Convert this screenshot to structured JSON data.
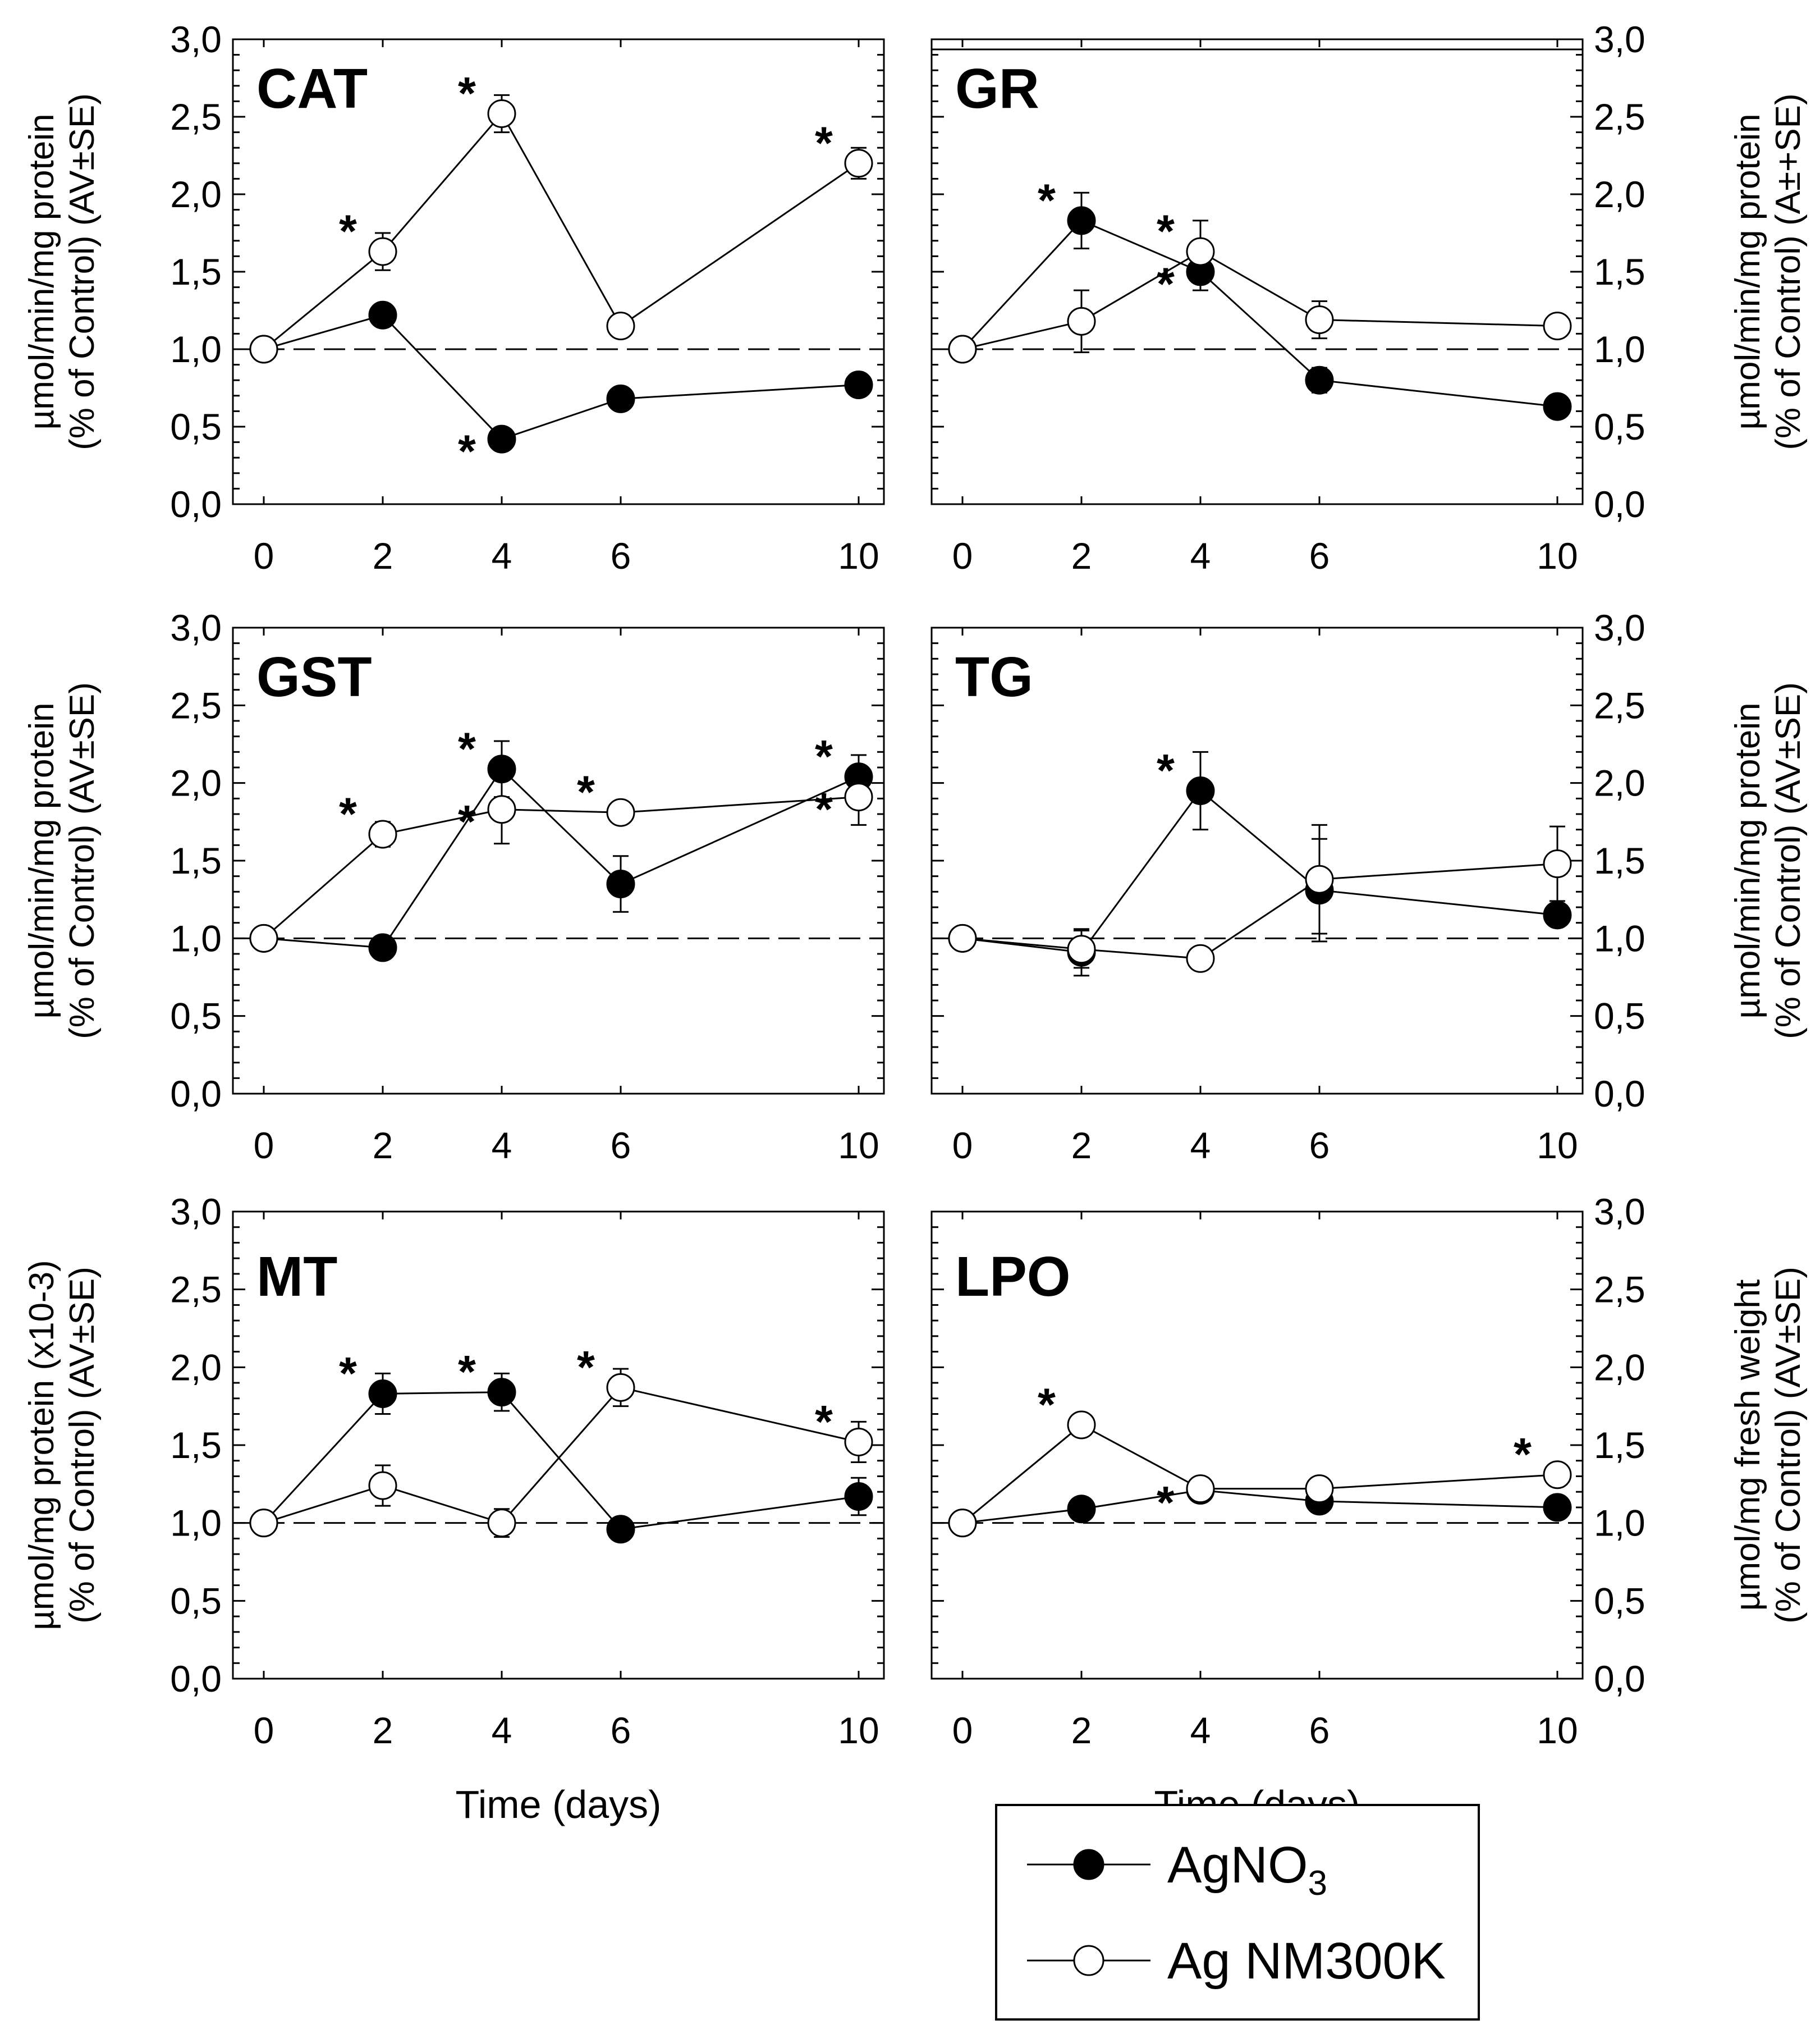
{
  "legend": {
    "agno3": {
      "prefix": "AgNO",
      "sub": "3"
    },
    "nm": "Ag NM300K"
  },
  "chart_data": [
    {
      "type": "line",
      "title": "CAT",
      "ylabel": [
        "µmol/min/mg protein",
        "(% of Control) (AV±SE)"
      ],
      "xlabel": "",
      "x": [
        0,
        2,
        4,
        6,
        10
      ],
      "xticks": [
        "0",
        "2",
        "4",
        "6",
        "10"
      ],
      "ylim": [
        0,
        3
      ],
      "yticks": [
        "0,0",
        "0,5",
        "1,0",
        "1,5",
        "2,0",
        "2,5",
        "3,0"
      ],
      "reference_line": 1.0,
      "series": [
        {
          "name": "AgNO3",
          "values": [
            1.0,
            1.22,
            0.42,
            0.68,
            0.77
          ],
          "errors": [
            0,
            0.03,
            0.04,
            0.05,
            0.04
          ],
          "stars": [
            null,
            null,
            "left-below",
            null,
            null
          ]
        },
        {
          "name": "Ag NM300K",
          "values": [
            1.0,
            1.63,
            2.52,
            1.15,
            2.2
          ],
          "errors": [
            0,
            0.12,
            0.12,
            0.05,
            0.1
          ],
          "stars": [
            null,
            "left",
            "left",
            null,
            "left"
          ]
        }
      ]
    },
    {
      "type": "line",
      "title": "GR",
      "ylabel": [
        "µmol/min/mg protein",
        "(% of Control) (A±+SE)"
      ],
      "xlabel": "",
      "x": [
        0,
        2,
        4,
        6,
        10
      ],
      "xticks": [
        "0",
        "2",
        "4",
        "6",
        "10"
      ],
      "ylim": [
        0,
        3
      ],
      "yticks": [
        "0,0",
        "0,5",
        "1,0",
        "1,5",
        "2,0",
        "2,5",
        "3,0"
      ],
      "reference_line": 1.0,
      "series": [
        {
          "name": "AgNO3",
          "values": [
            1.0,
            1.83,
            1.5,
            0.8,
            0.63
          ],
          "errors": [
            0,
            0.18,
            0.12,
            0.08,
            0.04
          ],
          "stars": [
            null,
            "left",
            "left-below",
            null,
            null
          ]
        },
        {
          "name": "Ag NM300K",
          "values": [
            1.0,
            1.18,
            1.63,
            1.19,
            1.15
          ],
          "errors": [
            0,
            0.2,
            0.2,
            0.12,
            0.07
          ],
          "stars": [
            null,
            null,
            "left",
            null,
            null
          ]
        }
      ]
    },
    {
      "type": "line",
      "title": "GST",
      "ylabel": [
        "µmol/min/mg protein",
        "(% of Control) (AV±SE)"
      ],
      "xlabel": "",
      "x": [
        0,
        2,
        4,
        6,
        10
      ],
      "xticks": [
        "0",
        "2",
        "4",
        "6",
        "10"
      ],
      "ylim": [
        0,
        3
      ],
      "yticks": [
        "0,0",
        "0,5",
        "1,0",
        "1,5",
        "2,0",
        "2,5",
        "3,0"
      ],
      "reference_line": 1.0,
      "series": [
        {
          "name": "AgNO3",
          "values": [
            1.0,
            0.94,
            2.09,
            1.35,
            2.04
          ],
          "errors": [
            0,
            0.06,
            0.18,
            0.18,
            0.14
          ],
          "stars": [
            null,
            null,
            "left",
            null,
            "left"
          ]
        },
        {
          "name": "Ag NM300K",
          "values": [
            1.0,
            1.67,
            1.83,
            1.81,
            1.91
          ],
          "errors": [
            0,
            0.08,
            0.22,
            0.07,
            0.18
          ],
          "stars": [
            null,
            "left",
            "left-below",
            "left",
            "left-below"
          ]
        }
      ]
    },
    {
      "type": "line",
      "title": "TG",
      "ylabel": [
        "µmol/min/mg protein",
        "(% of Control) (AV±SE)"
      ],
      "xlabel": "",
      "x": [
        0,
        2,
        4,
        6,
        10
      ],
      "xticks": [
        "0",
        "2",
        "4",
        "6",
        "10"
      ],
      "ylim": [
        0,
        3
      ],
      "yticks": [
        "0,0",
        "0,5",
        "1,0",
        "1,5",
        "2,0",
        "2,5",
        "3,0"
      ],
      "reference_line": 1.0,
      "series": [
        {
          "name": "AgNO3",
          "values": [
            1.0,
            0.91,
            1.95,
            1.31,
            1.15
          ],
          "errors": [
            0,
            0.15,
            0.25,
            0.33,
            0.06
          ],
          "stars": [
            null,
            null,
            "left",
            null,
            null
          ]
        },
        {
          "name": "Ag NM300K",
          "values": [
            1.0,
            0.93,
            0.87,
            1.38,
            1.48
          ],
          "errors": [
            0,
            0.12,
            0.03,
            0.35,
            0.24
          ],
          "stars": [
            null,
            null,
            null,
            null,
            null
          ]
        }
      ]
    },
    {
      "type": "line",
      "title": "MT",
      "ylabel": [
        "µmol/mg protein (x10-3)",
        "(%  of Control) (AV±SE)"
      ],
      "xlabel": "Time (days)",
      "x": [
        0,
        2,
        4,
        6,
        10
      ],
      "xticks": [
        "0",
        "2",
        "4",
        "6",
        "10"
      ],
      "ylim": [
        0,
        3
      ],
      "yticks": [
        "0,0",
        "0,5",
        "1,0",
        "1,5",
        "2,0",
        "2,5",
        "3,0"
      ],
      "reference_line": 1.0,
      "series": [
        {
          "name": "AgNO3",
          "values": [
            1.0,
            1.83,
            1.84,
            0.96,
            1.17
          ],
          "errors": [
            0,
            0.13,
            0.12,
            0.05,
            0.12
          ],
          "stars": [
            null,
            "left",
            "left",
            null,
            null
          ]
        },
        {
          "name": "Ag NM300K",
          "values": [
            1.0,
            1.24,
            1.0,
            1.87,
            1.52
          ],
          "errors": [
            0,
            0.13,
            0.09,
            0.12,
            0.13
          ],
          "stars": [
            null,
            null,
            null,
            "left",
            "left"
          ]
        }
      ]
    },
    {
      "type": "line",
      "title": "LPO",
      "ylabel": [
        "µmol/mg fresh weight",
        "(% of Control) (AV±SE)"
      ],
      "xlabel": "Time (days)",
      "x": [
        0,
        2,
        4,
        6,
        10
      ],
      "xticks": [
        "0",
        "2",
        "4",
        "6",
        "10"
      ],
      "ylim": [
        0,
        3
      ],
      "yticks": [
        "0,0",
        "0,5",
        "1,0",
        "1,5",
        "2,0",
        "2,5",
        "3,0"
      ],
      "reference_line": 1.0,
      "series": [
        {
          "name": "AgNO3",
          "values": [
            1.0,
            1.09,
            1.21,
            1.14,
            1.1
          ],
          "errors": [
            0,
            0.03,
            0.03,
            0.04,
            0.04
          ],
          "stars": [
            null,
            null,
            "left-below",
            null,
            null
          ]
        },
        {
          "name": "Ag NM300K",
          "values": [
            1.0,
            1.63,
            1.22,
            1.22,
            1.31
          ],
          "errors": [
            0,
            0.07,
            0.03,
            0.04,
            0.06
          ],
          "stars": [
            null,
            "left",
            null,
            null,
            "left"
          ]
        }
      ]
    }
  ]
}
